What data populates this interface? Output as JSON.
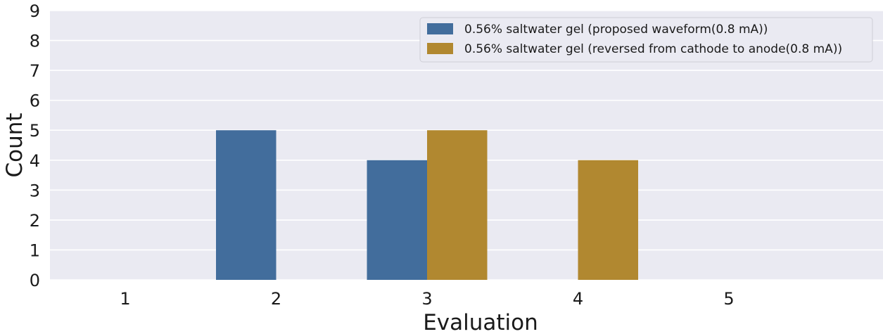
{
  "chart_data": {
    "type": "bar",
    "title": "",
    "xlabel": "Evaluation",
    "ylabel": "Count",
    "categories": [
      "1",
      "2",
      "3",
      "4",
      "5"
    ],
    "y_ticks": [
      "0",
      "1",
      "2",
      "3",
      "4",
      "5",
      "6",
      "7",
      "8",
      "9"
    ],
    "ylim": [
      0,
      9
    ],
    "grid": true,
    "legend_position": "top-right",
    "series": [
      {
        "name": "0.56% saltwater gel (proposed waveform(0.8 mA))",
        "color": "#426d9c",
        "values": [
          0,
          5,
          4,
          0,
          0
        ]
      },
      {
        "name": "0.56% saltwater gel (reversed from cathode to anode(0.8 mA))",
        "color": "#b18830",
        "values": [
          0,
          0,
          5,
          4,
          0
        ]
      }
    ],
    "plot_background": "#eaeaf2",
    "grid_color": "#ffffff"
  }
}
